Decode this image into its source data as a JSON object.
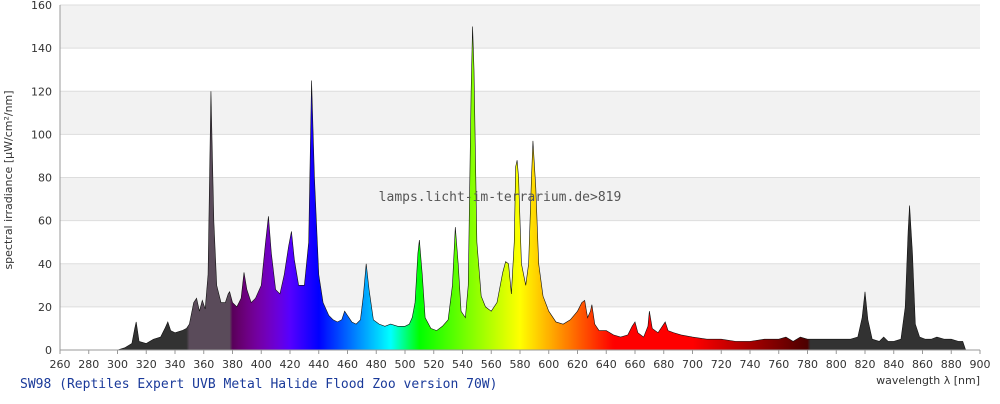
{
  "chart_data": {
    "type": "area",
    "title": "SW98 (Reptiles Expert UVB Metal Halide Flood Zoo version 70W)",
    "watermark": "lamps.licht-im-terrarium.de>819",
    "xlabel": "wavelength λ [nm]",
    "ylabel": "spectral irradiance [µW/cm²/nm]",
    "xlim": [
      260,
      900
    ],
    "ylim": [
      0,
      160
    ],
    "xticks": [
      260,
      280,
      300,
      320,
      340,
      360,
      380,
      400,
      420,
      440,
      460,
      480,
      500,
      520,
      540,
      560,
      580,
      600,
      620,
      640,
      660,
      680,
      700,
      720,
      740,
      760,
      780,
      800,
      820,
      840,
      860,
      880,
      900
    ],
    "yticks": [
      0,
      20,
      40,
      60,
      80,
      100,
      120,
      140,
      160
    ],
    "grid": true,
    "x": [
      300,
      305,
      310,
      312,
      313,
      315,
      320,
      325,
      330,
      333,
      335,
      337,
      340,
      345,
      348,
      350,
      353,
      355,
      357,
      359,
      361,
      363,
      365,
      367,
      369,
      372,
      375,
      377,
      378,
      380,
      383,
      386,
      388,
      390,
      393,
      396,
      400,
      403,
      405,
      407,
      410,
      413,
      416,
      419,
      421,
      423,
      426,
      430,
      433,
      435,
      437,
      440,
      443,
      447,
      450,
      453,
      456,
      458,
      460,
      463,
      466,
      469,
      471,
      473,
      475,
      478,
      482,
      486,
      490,
      495,
      500,
      503,
      505,
      507,
      509,
      510,
      512,
      514,
      518,
      522,
      526,
      530,
      533,
      535,
      537,
      539,
      542,
      544,
      546,
      547,
      548,
      550,
      553,
      556,
      560,
      564,
      568,
      570,
      572,
      574,
      576,
      577,
      578,
      579,
      581,
      584,
      586,
      588,
      589,
      591,
      593,
      596,
      600,
      605,
      610,
      615,
      620,
      623,
      625,
      627,
      629,
      630,
      632,
      635,
      640,
      645,
      650,
      655,
      658,
      660,
      662,
      666,
      669,
      670,
      672,
      676,
      679,
      681,
      683,
      687,
      692,
      700,
      710,
      720,
      730,
      740,
      750,
      760,
      765,
      770,
      775,
      780,
      790,
      800,
      810,
      815,
      818,
      820,
      822,
      825,
      830,
      833,
      836,
      840,
      845,
      848,
      850,
      851,
      853,
      855,
      858,
      862,
      866,
      870,
      875,
      880,
      885,
      888,
      890
    ],
    "values": [
      0,
      1,
      3,
      10,
      13,
      4,
      3,
      5,
      6,
      10,
      13,
      9,
      8,
      9,
      10,
      12,
      22,
      24,
      18,
      23,
      19,
      35,
      120,
      60,
      30,
      22,
      22,
      26,
      27,
      22,
      20,
      24,
      36,
      28,
      22,
      24,
      30,
      50,
      62,
      45,
      28,
      26,
      35,
      48,
      55,
      42,
      30,
      30,
      50,
      125,
      80,
      35,
      22,
      16,
      14,
      13,
      14,
      18,
      16,
      13,
      12,
      14,
      25,
      40,
      28,
      14,
      12,
      11,
      12,
      11,
      11,
      12,
      15,
      22,
      45,
      51,
      35,
      15,
      10,
      9,
      11,
      14,
      30,
      57,
      40,
      18,
      15,
      30,
      120,
      150,
      130,
      50,
      25,
      20,
      18,
      22,
      36,
      41,
      40,
      26,
      50,
      85,
      88,
      80,
      40,
      30,
      40,
      80,
      97,
      75,
      40,
      25,
      18,
      13,
      12,
      14,
      18,
      22,
      23,
      15,
      18,
      21,
      12,
      9,
      9,
      7,
      6,
      7,
      11,
      13,
      8,
      6,
      11,
      18,
      10,
      8,
      11,
      13,
      9,
      8,
      7,
      6,
      5,
      5,
      4,
      4,
      5,
      5,
      6,
      4,
      6,
      5,
      5,
      5,
      5,
      6,
      15,
      27,
      14,
      5,
      4,
      6,
      4,
      4,
      5,
      20,
      55,
      67,
      45,
      12,
      6,
      5,
      5,
      6,
      5,
      5,
      4,
      4,
      0
    ]
  }
}
